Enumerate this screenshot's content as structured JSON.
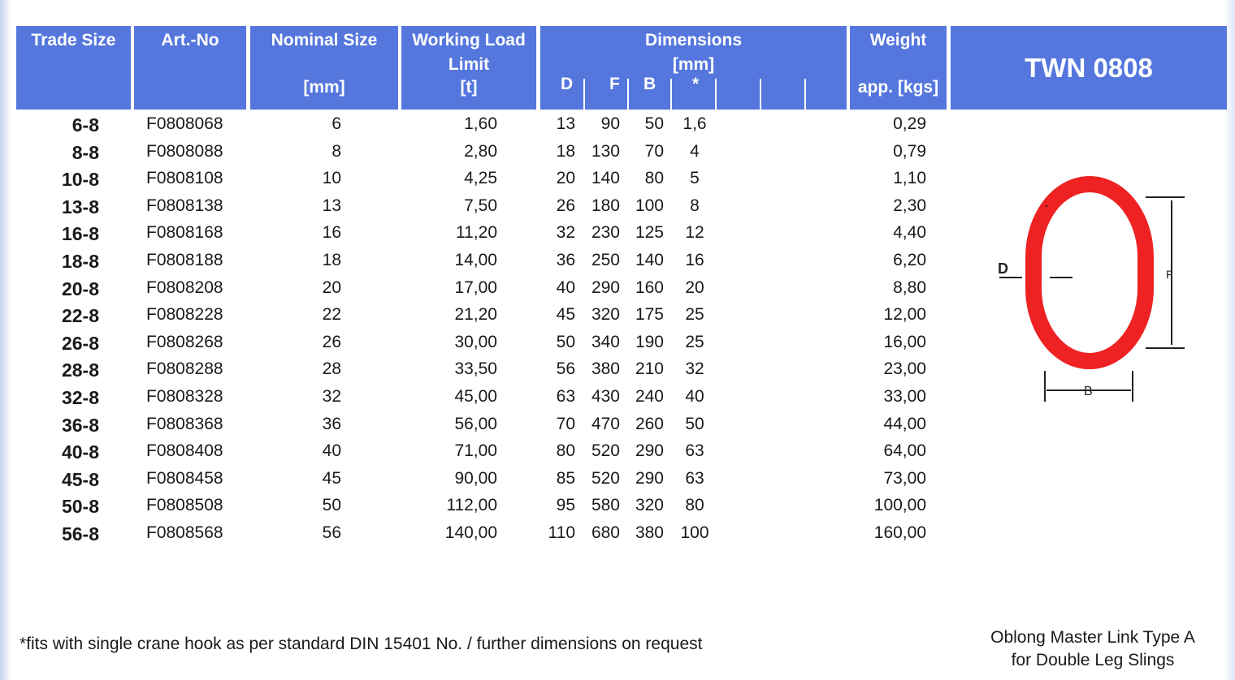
{
  "header": {
    "trade_size": "Trade Size",
    "art_no": "Art.-No",
    "nominal_size": "Nominal Size",
    "nominal_unit": "[mm]",
    "wll_line1": "Working Load",
    "wll_line2": "Limit",
    "wll_unit": "[t]",
    "dimensions": "Dimensions",
    "dimensions_unit": "[mm]",
    "dim_d": "D",
    "dim_f": "F",
    "dim_b": "B",
    "dim_star": "*",
    "weight": "Weight",
    "weight_unit": "app. [kgs]",
    "product_code": "TWN 0808"
  },
  "rows": [
    {
      "ts": "6-8",
      "art": "F0808068",
      "nom": "6",
      "wll": "1,60",
      "d": "13",
      "f": "90",
      "b": "50",
      "s": "1,6",
      "w": "0,29"
    },
    {
      "ts": "8-8",
      "art": "F0808088",
      "nom": "8",
      "wll": "2,80",
      "d": "18",
      "f": "130",
      "b": "70",
      "s": "4",
      "w": "0,79"
    },
    {
      "ts": "10-8",
      "art": "F0808108",
      "nom": "10",
      "wll": "4,25",
      "d": "20",
      "f": "140",
      "b": "80",
      "s": "5",
      "w": "1,10"
    },
    {
      "ts": "13-8",
      "art": "F0808138",
      "nom": "13",
      "wll": "7,50",
      "d": "26",
      "f": "180",
      "b": "100",
      "s": "8",
      "w": "2,30"
    },
    {
      "ts": "16-8",
      "art": "F0808168",
      "nom": "16",
      "wll": "11,20",
      "d": "32",
      "f": "230",
      "b": "125",
      "s": "12",
      "w": "4,40"
    },
    {
      "ts": "18-8",
      "art": "F0808188",
      "nom": "18",
      "wll": "14,00",
      "d": "36",
      "f": "250",
      "b": "140",
      "s": "16",
      "w": "6,20"
    },
    {
      "ts": "20-8",
      "art": "F0808208",
      "nom": "20",
      "wll": "17,00",
      "d": "40",
      "f": "290",
      "b": "160",
      "s": "20",
      "w": "8,80"
    },
    {
      "ts": "22-8",
      "art": "F0808228",
      "nom": "22",
      "wll": "21,20",
      "d": "45",
      "f": "320",
      "b": "175",
      "s": "25",
      "w": "12,00"
    },
    {
      "ts": "26-8",
      "art": "F0808268",
      "nom": "26",
      "wll": "30,00",
      "d": "50",
      "f": "340",
      "b": "190",
      "s": "25",
      "w": "16,00"
    },
    {
      "ts": "28-8",
      "art": "F0808288",
      "nom": "28",
      "wll": "33,50",
      "d": "56",
      "f": "380",
      "b": "210",
      "s": "32",
      "w": "23,00"
    },
    {
      "ts": "32-8",
      "art": "F0808328",
      "nom": "32",
      "wll": "45,00",
      "d": "63",
      "f": "430",
      "b": "240",
      "s": "40",
      "w": "33,00"
    },
    {
      "ts": "36-8",
      "art": "F0808368",
      "nom": "36",
      "wll": "56,00",
      "d": "70",
      "f": "470",
      "b": "260",
      "s": "50",
      "w": "44,00"
    },
    {
      "ts": "40-8",
      "art": "F0808408",
      "nom": "40",
      "wll": "71,00",
      "d": "80",
      "f": "520",
      "b": "290",
      "s": "63",
      "w": "64,00"
    },
    {
      "ts": "45-8",
      "art": "F0808458",
      "nom": "45",
      "wll": "90,00",
      "d": "85",
      "f": "520",
      "b": "290",
      "s": "63",
      "w": "73,00"
    },
    {
      "ts": "50-8",
      "art": "F0808508",
      "nom": "50",
      "wll": "112,00",
      "d": "95",
      "f": "580",
      "b": "320",
      "s": "80",
      "w": "100,00"
    },
    {
      "ts": "56-8",
      "art": "F0808568",
      "nom": "56",
      "wll": "140,00",
      "d": "110",
      "f": "680",
      "b": "380",
      "s": "100",
      "w": "160,00"
    }
  ],
  "diagram": {
    "label_d": "D",
    "label_b": "B",
    "label_f": "F",
    "link_color": "#ee2222"
  },
  "footnote": "*fits with single crane hook as per standard DIN 15401 No. / further dimensions on request",
  "caption_line1": "Oblong Master Link Type A",
  "caption_line2": "for Double Leg Slings",
  "colors": {
    "header_bg": "#5577dd",
    "header_text": "#ffffff"
  }
}
